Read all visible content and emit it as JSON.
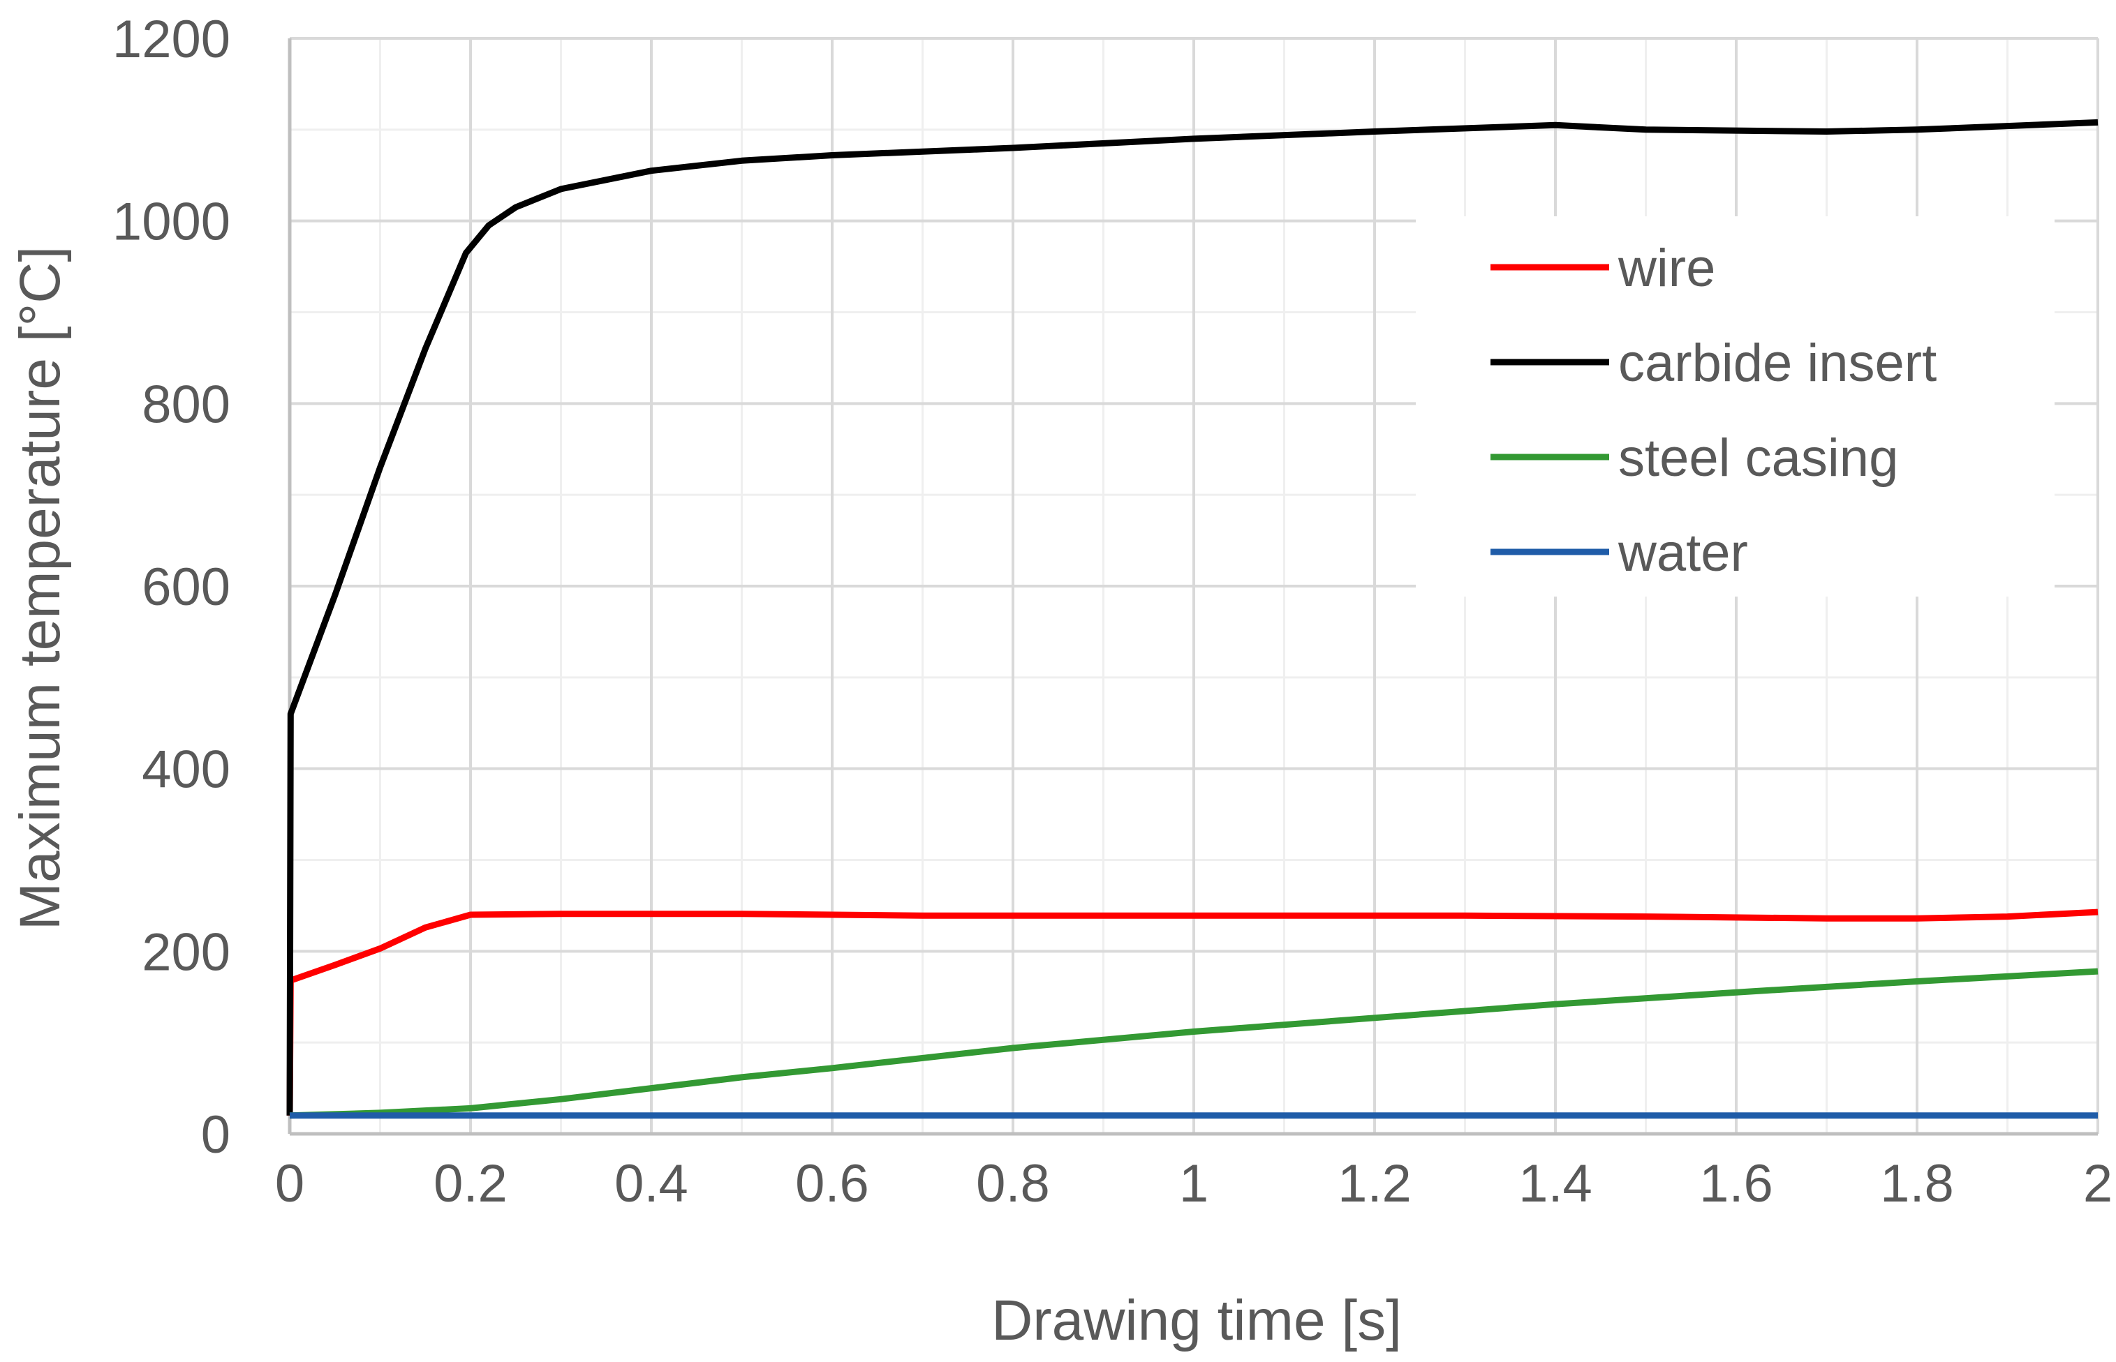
{
  "chart_data": {
    "type": "line",
    "title": "",
    "xlabel": "Drawing time [s]",
    "ylabel": "Maximum temperature [°C]",
    "xlim": [
      0,
      2
    ],
    "ylim": [
      0,
      1200
    ],
    "x_ticks": [
      0,
      0.2,
      0.4,
      0.6,
      0.8,
      1,
      1.2,
      1.4,
      1.6,
      1.8,
      2
    ],
    "x_tick_labels": [
      "0",
      "0.2",
      "0.4",
      "0.6",
      "0.8",
      "1",
      "1.2",
      "1.4",
      "1.6",
      "1.8",
      "2"
    ],
    "y_ticks": [
      0,
      200,
      400,
      600,
      800,
      1000,
      1200
    ],
    "y_tick_labels": [
      "0",
      "200",
      "400",
      "600",
      "800",
      "1000",
      "1200"
    ],
    "x_minor_step": 0.1,
    "y_minor_step": 100,
    "grid": true,
    "legend_position": "top-right",
    "series": [
      {
        "name": "wire",
        "color": "#ff0000",
        "points": [
          [
            0,
            20
          ],
          [
            0.001,
            168
          ],
          [
            0.05,
            185
          ],
          [
            0.1,
            203
          ],
          [
            0.15,
            226
          ],
          [
            0.2,
            240
          ],
          [
            0.3,
            241
          ],
          [
            0.5,
            241
          ],
          [
            0.7,
            239
          ],
          [
            1.0,
            239
          ],
          [
            1.3,
            239
          ],
          [
            1.5,
            238
          ],
          [
            1.7,
            236
          ],
          [
            1.8,
            236
          ],
          [
            1.9,
            238
          ],
          [
            2.0,
            243
          ]
        ]
      },
      {
        "name": "carbide insert",
        "color": "#000000",
        "points": [
          [
            0,
            20
          ],
          [
            0.001,
            460
          ],
          [
            0.05,
            590
          ],
          [
            0.1,
            730
          ],
          [
            0.15,
            860
          ],
          [
            0.195,
            965
          ],
          [
            0.22,
            995
          ],
          [
            0.25,
            1015
          ],
          [
            0.3,
            1035
          ],
          [
            0.4,
            1055
          ],
          [
            0.5,
            1066
          ],
          [
            0.6,
            1072
          ],
          [
            0.8,
            1080
          ],
          [
            1.0,
            1090
          ],
          [
            1.2,
            1098
          ],
          [
            1.4,
            1105
          ],
          [
            1.5,
            1100
          ],
          [
            1.7,
            1098
          ],
          [
            1.8,
            1100
          ],
          [
            2.0,
            1108
          ]
        ]
      },
      {
        "name": "steel casing",
        "color": "#339933",
        "points": [
          [
            0,
            20
          ],
          [
            0.1,
            23
          ],
          [
            0.2,
            28
          ],
          [
            0.3,
            38
          ],
          [
            0.4,
            50
          ],
          [
            0.5,
            62
          ],
          [
            0.6,
            72
          ],
          [
            0.8,
            94
          ],
          [
            1.0,
            112
          ],
          [
            1.2,
            127
          ],
          [
            1.4,
            142
          ],
          [
            1.6,
            155
          ],
          [
            1.8,
            167
          ],
          [
            2.0,
            178
          ]
        ]
      },
      {
        "name": "water",
        "color": "#1f5ca8",
        "points": [
          [
            0,
            20
          ],
          [
            2.0,
            20
          ]
        ]
      }
    ]
  }
}
